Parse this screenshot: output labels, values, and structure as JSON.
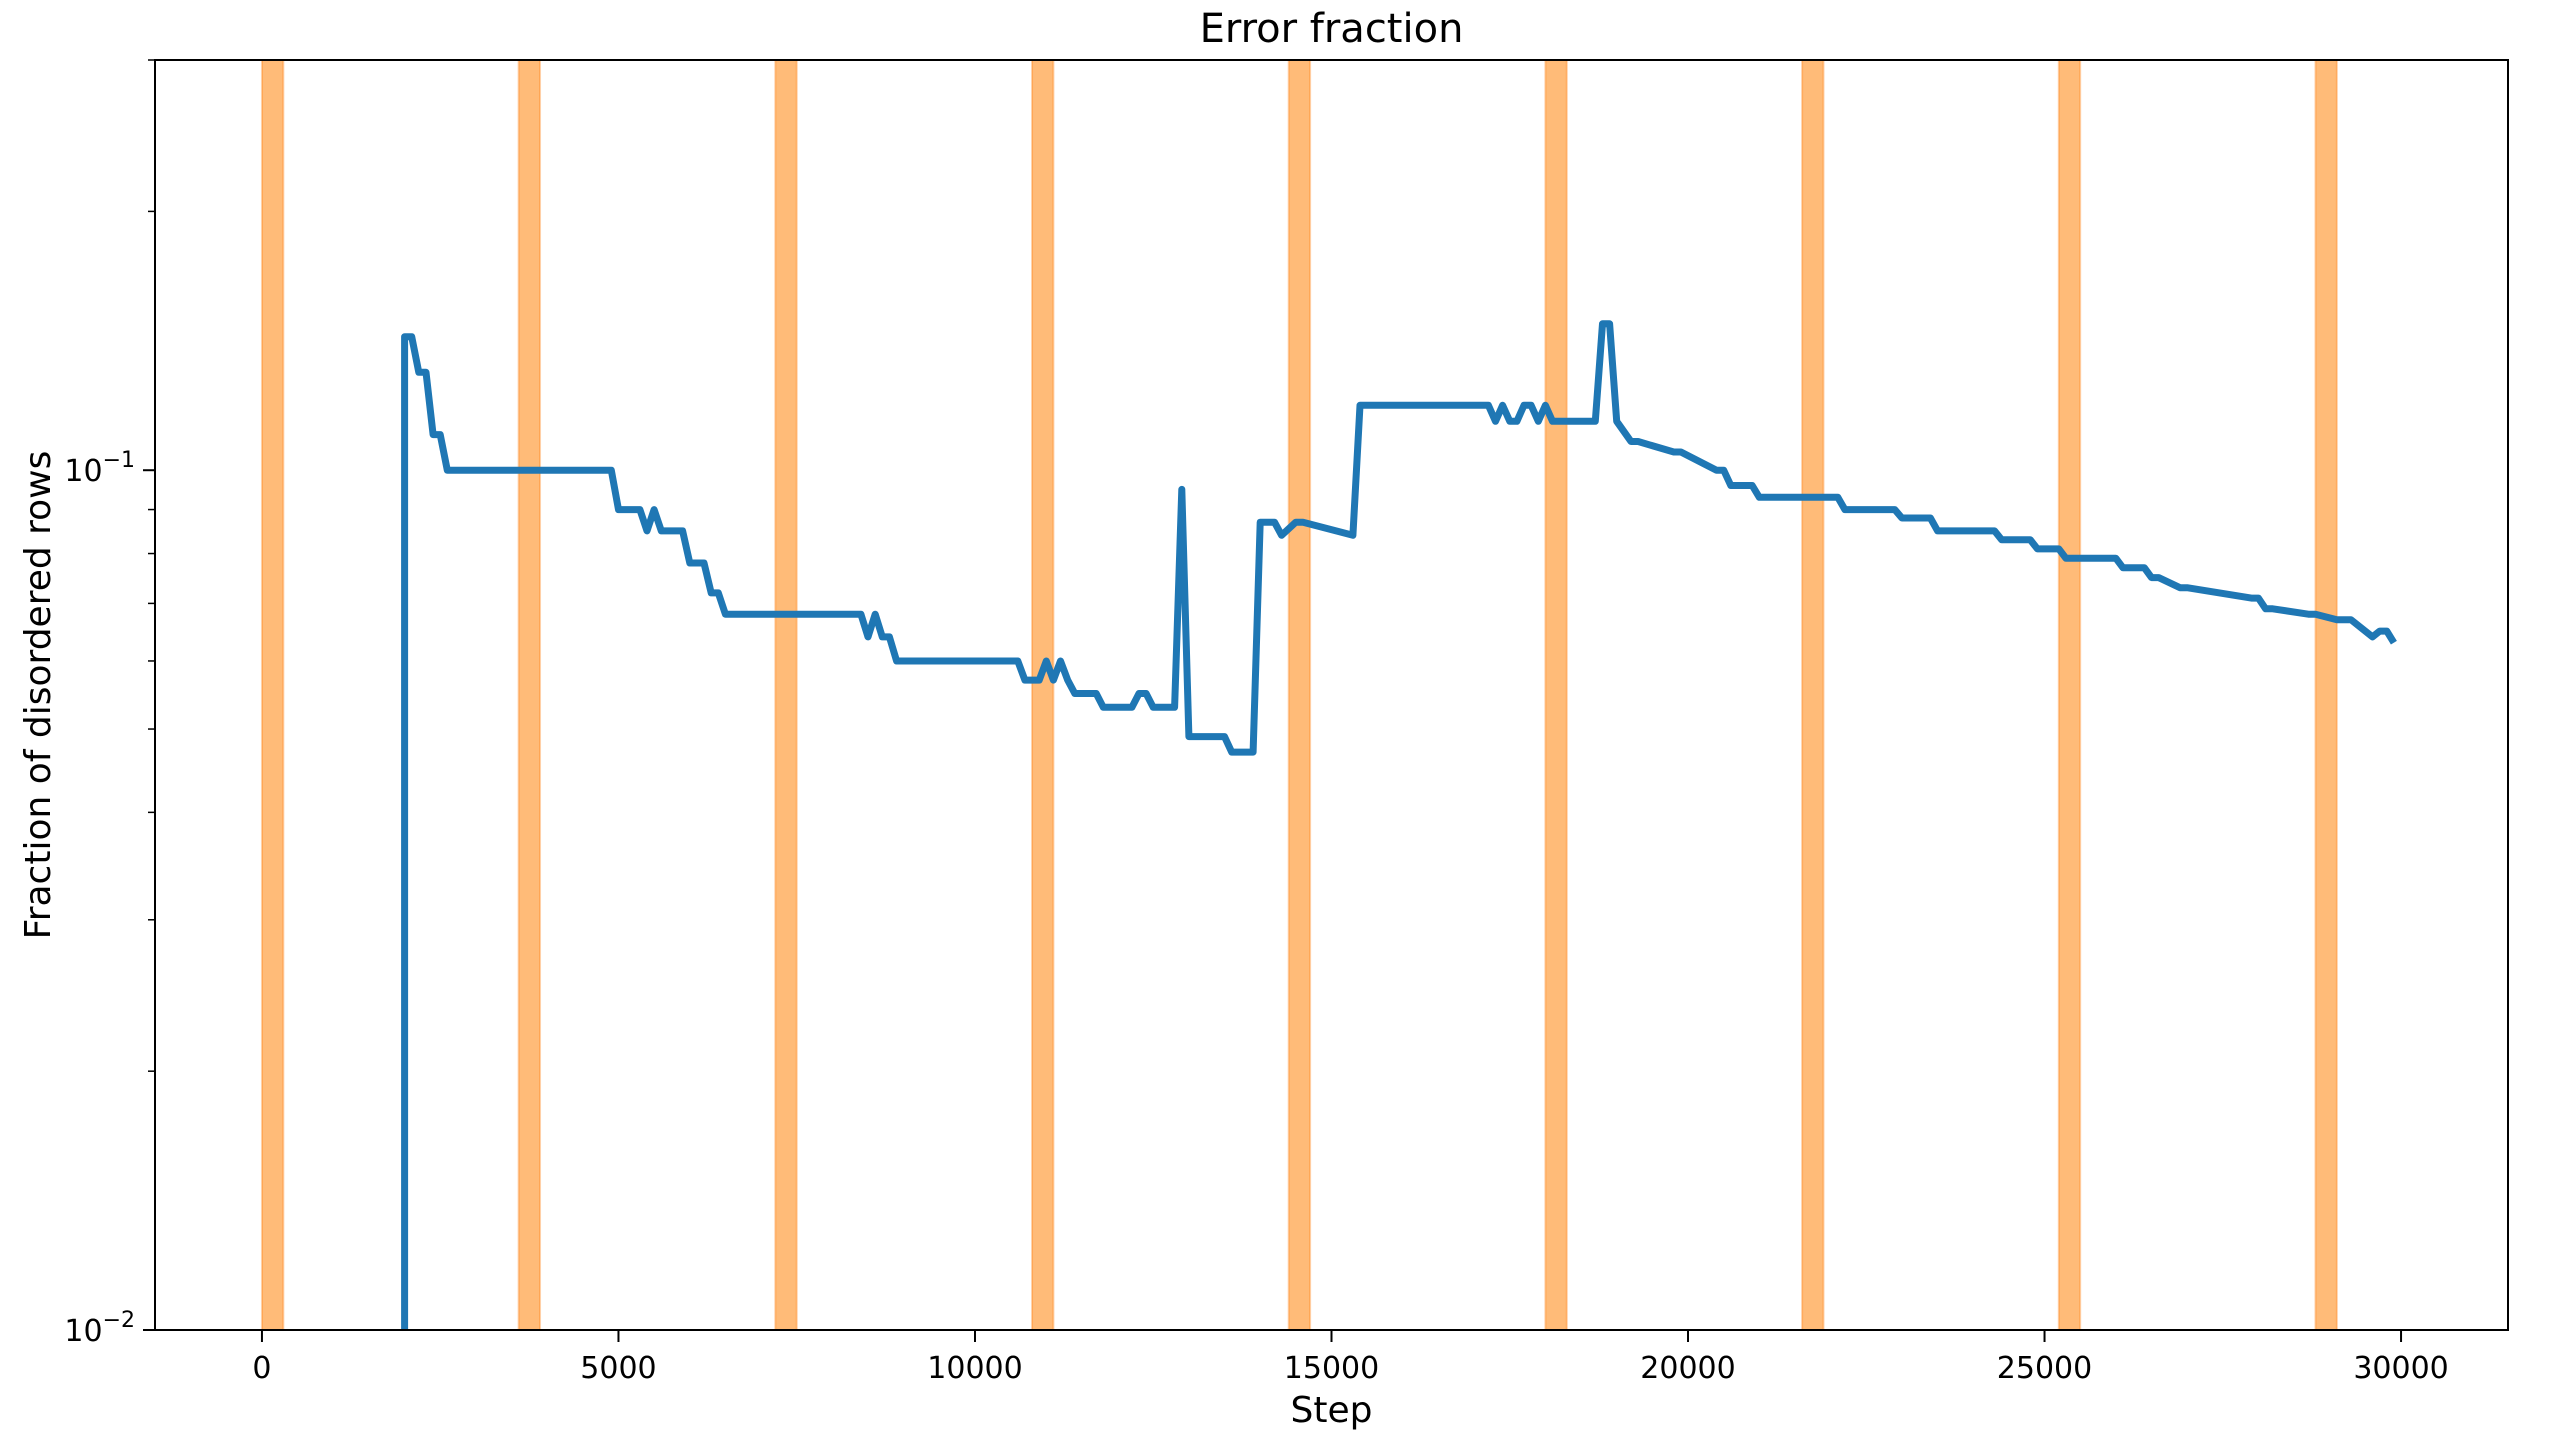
{
  "chart_data": {
    "type": "line",
    "title": "Error fraction",
    "xlabel": "Step",
    "ylabel": "Fraction of disordered rows",
    "xlim": [
      -1500,
      31500
    ],
    "ylim": [
      0.01,
      0.3
    ],
    "yscale": "log",
    "grid": false,
    "x_ticks": [
      0,
      5000,
      10000,
      15000,
      20000,
      25000,
      30000
    ],
    "y_major_ticks": [
      {
        "value": 0.01,
        "base": "10",
        "exp": "−2"
      },
      {
        "value": 0.1,
        "base": "10",
        "exp": "−1"
      }
    ],
    "y_minor_ticks": [
      0.02,
      0.03,
      0.04,
      0.05,
      0.06,
      0.07,
      0.08,
      0.09,
      0.2,
      0.3
    ],
    "colors": {
      "line": "#1f77b4",
      "band_fill": "#ffbb78",
      "band_edge": "#ff7f0e"
    },
    "bands": [
      [
        0,
        300
      ],
      [
        3600,
        3900
      ],
      [
        7200,
        7500
      ],
      [
        10800,
        11100
      ],
      [
        14400,
        14700
      ],
      [
        18000,
        18300
      ],
      [
        21600,
        21900
      ],
      [
        25200,
        25500
      ],
      [
        28800,
        29100
      ]
    ],
    "series": [
      {
        "x": [
          2000,
          2000,
          2100,
          2200,
          2300,
          2400,
          2500,
          2600,
          4900,
          5000,
          5300,
          5400,
          5500,
          5600,
          5900,
          6000,
          6200,
          6300,
          6400,
          6500,
          8400,
          8500,
          8600,
          8700,
          8800,
          8900,
          9100,
          10600,
          10700,
          10900,
          11000,
          11100,
          11200,
          11300,
          11400,
          11700,
          11800,
          12200,
          12300,
          12400,
          12500,
          12800,
          12900,
          13000,
          13500,
          13600,
          13900,
          14000,
          14200,
          14300,
          14500,
          14600,
          15300,
          15400,
          17200,
          17300,
          17400,
          17500,
          17600,
          17700,
          17800,
          17900,
          18000,
          18100,
          18200,
          18300,
          18700,
          18800,
          18900,
          19000,
          19200,
          19300,
          19800,
          19900,
          20400,
          20500,
          20600,
          20900,
          21000,
          22100,
          22200,
          22900,
          23000,
          23400,
          23500,
          24300,
          24400,
          24800,
          24900,
          25200,
          25300,
          26000,
          26100,
          26400,
          26500,
          26600,
          26900,
          27000,
          27900,
          28000,
          28100,
          28200,
          28700,
          28800,
          29100,
          29200,
          29300,
          29600,
          29700,
          29800,
          29900
        ],
        "values": [
          0.01,
          0.143,
          0.143,
          0.13,
          0.13,
          0.11,
          0.11,
          0.1,
          0.1,
          0.09,
          0.09,
          0.085,
          0.09,
          0.085,
          0.085,
          0.078,
          0.078,
          0.072,
          0.072,
          0.068,
          0.068,
          0.064,
          0.068,
          0.064,
          0.064,
          0.06,
          0.06,
          0.06,
          0.057,
          0.057,
          0.06,
          0.057,
          0.06,
          0.057,
          0.055,
          0.055,
          0.053,
          0.053,
          0.055,
          0.055,
          0.053,
          0.053,
          0.095,
          0.049,
          0.049,
          0.047,
          0.047,
          0.087,
          0.087,
          0.084,
          0.087,
          0.087,
          0.084,
          0.119,
          0.119,
          0.114,
          0.119,
          0.114,
          0.114,
          0.119,
          0.119,
          0.114,
          0.119,
          0.114,
          0.114,
          0.114,
          0.114,
          0.148,
          0.148,
          0.114,
          0.108,
          0.108,
          0.105,
          0.105,
          0.1,
          0.1,
          0.096,
          0.096,
          0.093,
          0.093,
          0.09,
          0.09,
          0.088,
          0.088,
          0.085,
          0.085,
          0.083,
          0.083,
          0.081,
          0.081,
          0.079,
          0.079,
          0.077,
          0.077,
          0.075,
          0.075,
          0.073,
          0.073,
          0.071,
          0.071,
          0.069,
          0.069,
          0.068,
          0.068,
          0.067,
          0.067,
          0.067,
          0.064,
          0.065,
          0.065,
          0.063
        ]
      }
    ]
  }
}
